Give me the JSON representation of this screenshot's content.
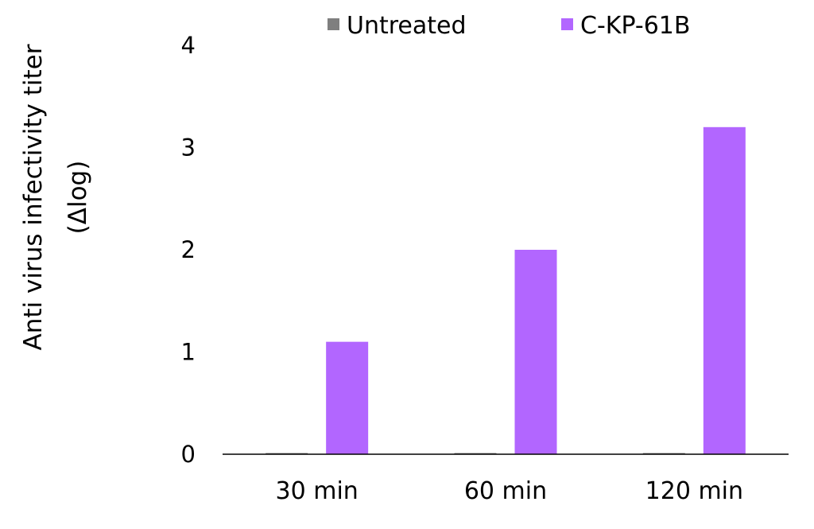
{
  "chart_data": {
    "type": "bar",
    "categories": [
      "30 min",
      "60 min",
      "120 min"
    ],
    "series": [
      {
        "name": "Untreated",
        "values": [
          0,
          0,
          0
        ],
        "color": "#7f7f7f"
      },
      {
        "name": "C-KP-61B",
        "values": [
          1.1,
          2.0,
          3.2
        ],
        "color": "#b266ff"
      }
    ],
    "ylabel_line1": "Anti virus infectivity titer",
    "ylabel_line2": "(Δlog)",
    "ylim": [
      0,
      4
    ],
    "yticks": [
      "0",
      "1",
      "2",
      "3",
      "4"
    ],
    "grid": false,
    "legend_position": "top"
  }
}
